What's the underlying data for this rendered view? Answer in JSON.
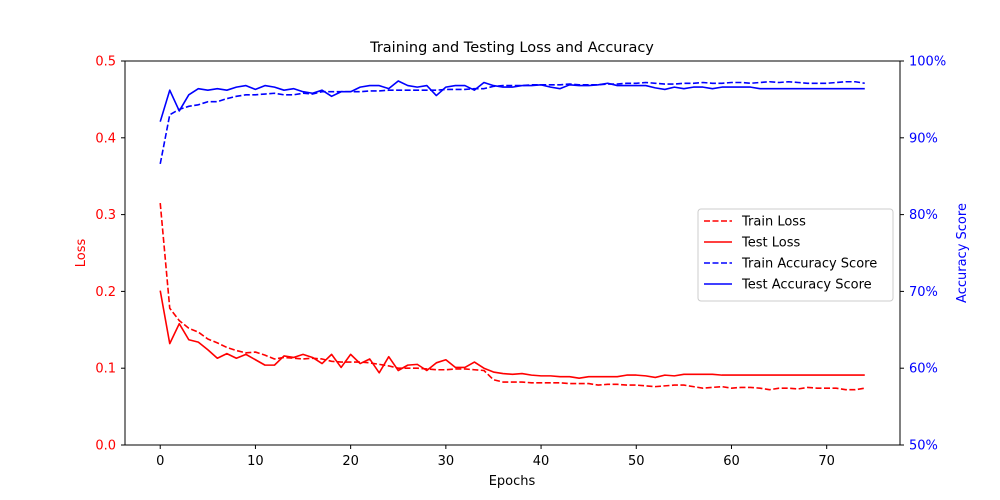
{
  "chart_data": {
    "type": "line",
    "title": "Training and Testing Loss and Accuracy",
    "xlabel": "Epochs",
    "ylabel_left": "Loss",
    "ylabel_right": "Accuracy Score",
    "xlim": [
      -3.7,
      77.7
    ],
    "ylim_left": [
      0,
      0.5
    ],
    "ylim_right": [
      0.5,
      1.0
    ],
    "x_ticks": [
      0,
      10,
      20,
      30,
      40,
      50,
      60,
      70
    ],
    "y_ticks_left": [
      0.0,
      0.1,
      0.2,
      0.3,
      0.4,
      0.5
    ],
    "y_ticks_left_labels": [
      "0.0",
      "0.1",
      "0.2",
      "0.3",
      "0.4",
      "0.5"
    ],
    "y_ticks_right": [
      0.5,
      0.6,
      0.7,
      0.8,
      0.9,
      1.0
    ],
    "y_ticks_right_labels": [
      "50%",
      "60%",
      "70%",
      "80%",
      "90%",
      "100%"
    ],
    "grid": false,
    "legend_position": "center-right",
    "colors": {
      "loss": "#ff0000",
      "accuracy": "#0000ff",
      "axis": "#000000"
    },
    "series": [
      {
        "name": "Train Loss",
        "axis": "left",
        "color": "#ff0000",
        "dash": true,
        "values": [
          0.315,
          0.178,
          0.162,
          0.152,
          0.147,
          0.138,
          0.133,
          0.127,
          0.123,
          0.12,
          0.121,
          0.117,
          0.112,
          0.114,
          0.113,
          0.112,
          0.113,
          0.112,
          0.109,
          0.108,
          0.108,
          0.108,
          0.107,
          0.105,
          0.103,
          0.1,
          0.1,
          0.1,
          0.099,
          0.098,
          0.098,
          0.099,
          0.099,
          0.098,
          0.097,
          0.085,
          0.082,
          0.082,
          0.082,
          0.081,
          0.081,
          0.081,
          0.081,
          0.08,
          0.08,
          0.08,
          0.078,
          0.079,
          0.079,
          0.078,
          0.078,
          0.077,
          0.076,
          0.077,
          0.078,
          0.078,
          0.076,
          0.074,
          0.075,
          0.076,
          0.074,
          0.075,
          0.075,
          0.074,
          0.072,
          0.074,
          0.074,
          0.073,
          0.075,
          0.074,
          0.074,
          0.074,
          0.072,
          0.072,
          0.074
        ]
      },
      {
        "name": "Test Loss",
        "axis": "left",
        "color": "#ff0000",
        "dash": false,
        "values": [
          0.201,
          0.132,
          0.158,
          0.137,
          0.134,
          0.124,
          0.113,
          0.119,
          0.113,
          0.118,
          0.111,
          0.104,
          0.104,
          0.116,
          0.114,
          0.118,
          0.114,
          0.106,
          0.118,
          0.101,
          0.118,
          0.106,
          0.112,
          0.094,
          0.115,
          0.097,
          0.104,
          0.105,
          0.097,
          0.107,
          0.111,
          0.101,
          0.101,
          0.108,
          0.1,
          0.095,
          0.093,
          0.092,
          0.093,
          0.091,
          0.09,
          0.09,
          0.089,
          0.089,
          0.087,
          0.089,
          0.089,
          0.089,
          0.089,
          0.091,
          0.091,
          0.09,
          0.088,
          0.091,
          0.09,
          0.092,
          0.092,
          0.092,
          0.092,
          0.091,
          0.091,
          0.091,
          0.091,
          0.091,
          0.091,
          0.091,
          0.091,
          0.091,
          0.091,
          0.091,
          0.091,
          0.091,
          0.091,
          0.091,
          0.091
        ]
      },
      {
        "name": "Train Accuracy Score",
        "axis": "right",
        "color": "#0000ff",
        "dash": true,
        "values": [
          0.866,
          0.93,
          0.937,
          0.941,
          0.943,
          0.947,
          0.947,
          0.951,
          0.954,
          0.956,
          0.956,
          0.957,
          0.958,
          0.956,
          0.956,
          0.958,
          0.957,
          0.96,
          0.96,
          0.96,
          0.96,
          0.96,
          0.961,
          0.961,
          0.962,
          0.962,
          0.962,
          0.962,
          0.962,
          0.962,
          0.963,
          0.963,
          0.963,
          0.964,
          0.964,
          0.967,
          0.968,
          0.968,
          0.968,
          0.969,
          0.969,
          0.969,
          0.969,
          0.97,
          0.969,
          0.969,
          0.969,
          0.97,
          0.97,
          0.971,
          0.971,
          0.972,
          0.971,
          0.97,
          0.97,
          0.971,
          0.971,
          0.972,
          0.971,
          0.971,
          0.972,
          0.972,
          0.971,
          0.972,
          0.973,
          0.972,
          0.973,
          0.972,
          0.971,
          0.971,
          0.971,
          0.972,
          0.973,
          0.973,
          0.971
        ]
      },
      {
        "name": "Test Accuracy Score",
        "axis": "right",
        "color": "#0000ff",
        "dash": false,
        "values": [
          0.921,
          0.962,
          0.935,
          0.956,
          0.964,
          0.962,
          0.964,
          0.962,
          0.966,
          0.968,
          0.963,
          0.968,
          0.966,
          0.962,
          0.964,
          0.96,
          0.958,
          0.962,
          0.954,
          0.96,
          0.96,
          0.966,
          0.968,
          0.968,
          0.964,
          0.974,
          0.968,
          0.966,
          0.968,
          0.955,
          0.966,
          0.968,
          0.968,
          0.962,
          0.972,
          0.968,
          0.966,
          0.966,
          0.968,
          0.968,
          0.969,
          0.966,
          0.964,
          0.969,
          0.968,
          0.968,
          0.969,
          0.971,
          0.968,
          0.968,
          0.968,
          0.968,
          0.965,
          0.963,
          0.966,
          0.964,
          0.966,
          0.966,
          0.964,
          0.966,
          0.966,
          0.966,
          0.966,
          0.964,
          0.964,
          0.964,
          0.964,
          0.964,
          0.964,
          0.964,
          0.964,
          0.964,
          0.964,
          0.964,
          0.964
        ]
      }
    ]
  }
}
